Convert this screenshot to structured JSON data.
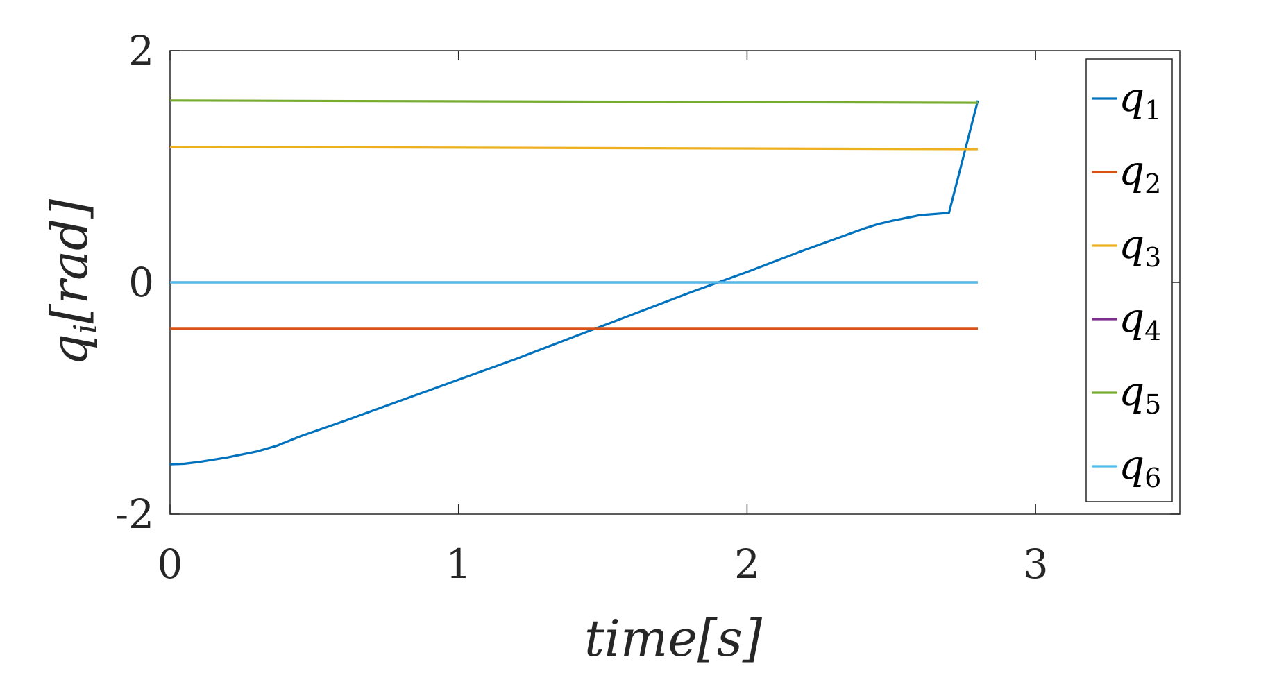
{
  "chart_data": {
    "type": "line",
    "xlabel": "time[s]",
    "ylabel": "q_i[rad]",
    "ylabel_main": "q",
    "ylabel_sub": "i",
    "ylabel_unit": "[rad]",
    "xlim": [
      0,
      3.5
    ],
    "ylim": [
      -2,
      2
    ],
    "xticks": [
      0,
      1,
      2,
      3
    ],
    "yticks": [
      -2,
      0,
      2
    ],
    "xtick_labels": [
      "0",
      "1",
      "2",
      "3"
    ],
    "ytick_labels": [
      "-2",
      "0",
      "2"
    ],
    "grid": false,
    "legend_position": "right-inside",
    "series": [
      {
        "name": "q1",
        "label_main": "q",
        "label_sub": "1",
        "color": "#0072BD",
        "x": [
          0,
          0.05,
          0.1,
          0.2,
          0.3,
          0.37,
          0.45,
          0.6,
          0.8,
          1.0,
          1.2,
          1.41,
          1.6,
          1.8,
          2.0,
          2.2,
          2.3,
          2.4,
          2.45,
          2.5,
          2.6,
          2.7,
          2.8
        ],
        "y": [
          -1.57,
          -1.565,
          -1.55,
          -1.51,
          -1.46,
          -1.41,
          -1.33,
          -1.2,
          -1.02,
          -0.84,
          -0.66,
          -0.46,
          -0.28,
          -0.09,
          0.09,
          0.28,
          0.37,
          0.46,
          0.5,
          0.53,
          0.58,
          0.6,
          1.57
        ]
      },
      {
        "name": "q2",
        "label_main": "q",
        "label_sub": "2",
        "color": "#D95319",
        "x": [
          0,
          2.8
        ],
        "y": [
          -0.4,
          -0.4
        ]
      },
      {
        "name": "q3",
        "label_main": "q",
        "label_sub": "3",
        "color": "#EDB120",
        "x": [
          0,
          2.8
        ],
        "y": [
          1.17,
          1.15
        ]
      },
      {
        "name": "q4",
        "label_main": "q",
        "label_sub": "4",
        "color": "#7E2F8E",
        "x": [
          0,
          2.8
        ],
        "y": [
          0,
          0
        ]
      },
      {
        "name": "q5",
        "label_main": "q",
        "label_sub": "5",
        "color": "#77AC30",
        "x": [
          0,
          2.8
        ],
        "y": [
          1.57,
          1.55
        ]
      },
      {
        "name": "q6",
        "label_main": "q",
        "label_sub": "6",
        "color": "#4DBEEE",
        "x": [
          0,
          2.8
        ],
        "y": [
          0,
          0
        ]
      }
    ]
  }
}
